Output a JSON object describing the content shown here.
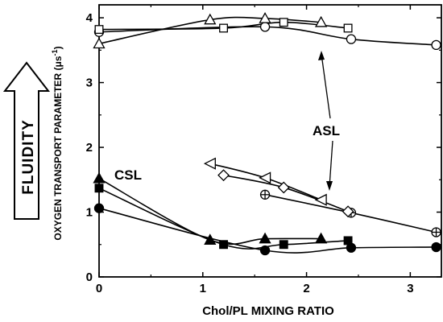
{
  "chart_data": {
    "type": "scatter",
    "title": "",
    "xlabel": "Chol/PL MIXING RATIO",
    "ylabel": "OXYGEN TRANSPORT PARAMETER (μs",
    "ylabel_superscript": "-1",
    "ylabel_close": ")",
    "xlim": [
      0,
      3.3
    ],
    "ylim": [
      0,
      4.2
    ],
    "x_ticks": [
      0,
      1,
      2,
      3
    ],
    "y_ticks": [
      0,
      1,
      2,
      3,
      4
    ],
    "grid": false,
    "side_arrow_label": "FLUIDITY",
    "annotations": [
      {
        "text": "ASL",
        "points_to": [
          "circle-open",
          "square-open"
        ]
      },
      {
        "text": "CSL",
        "points_to": [
          "csl-series"
        ]
      }
    ],
    "series": [
      {
        "marker": "circle-open",
        "fill": "none",
        "group": "ASL-top",
        "x": [
          0,
          1.6,
          2.43,
          3.25
        ],
        "y": [
          3.78,
          3.86,
          3.67,
          3.58
        ]
      },
      {
        "marker": "square-open",
        "fill": "none",
        "group": "ASL-top",
        "x": [
          0,
          1.2,
          1.78,
          2.4
        ],
        "y": [
          3.82,
          3.84,
          3.93,
          3.84
        ]
      },
      {
        "marker": "triangle-open",
        "fill": "none",
        "group": "ASL-top",
        "x": [
          0,
          1.07,
          1.6,
          2.14
        ],
        "y": [
          3.6,
          3.97,
          3.99,
          3.93
        ]
      },
      {
        "marker": "circle-plus",
        "fill": "none",
        "group": "ASL-bottom",
        "x": [
          1.6,
          2.43,
          3.25
        ],
        "y": [
          1.27,
          0.99,
          0.69
        ]
      },
      {
        "marker": "triangle-left",
        "fill": "none",
        "group": "ASL-bottom",
        "x": [
          1.07,
          1.6,
          2.14
        ],
        "y": [
          1.75,
          1.53,
          1.19
        ]
      },
      {
        "marker": "diamond-open",
        "fill": "none",
        "group": "ASL-bottom",
        "x": [
          1.2,
          1.78,
          2.4
        ],
        "y": [
          1.57,
          1.38,
          1.01
        ]
      },
      {
        "marker": "circle-filled",
        "fill": "#000",
        "group": "CSL",
        "x": [
          0,
          1.6,
          2.43,
          3.25
        ],
        "y": [
          1.06,
          0.41,
          0.45,
          0.46
        ]
      },
      {
        "marker": "square-filled",
        "fill": "#000",
        "group": "CSL",
        "x": [
          0,
          1.2,
          1.78,
          2.4
        ],
        "y": [
          1.37,
          0.5,
          0.5,
          0.56
        ]
      },
      {
        "marker": "triangle-filled",
        "fill": "#000",
        "group": "CSL",
        "x": [
          0,
          1.07,
          1.6,
          2.14
        ],
        "y": [
          1.52,
          0.57,
          0.59,
          0.59
        ]
      }
    ]
  }
}
